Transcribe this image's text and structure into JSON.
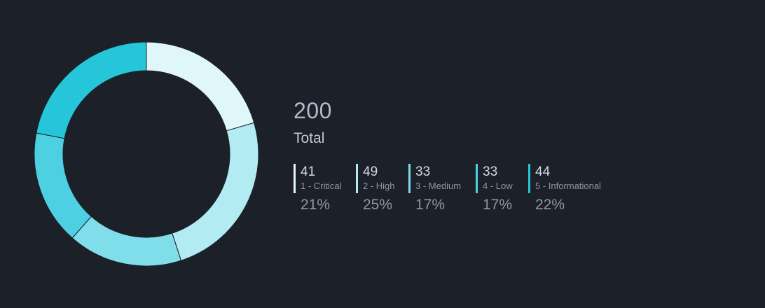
{
  "chart_data": {
    "type": "pie",
    "total": 200,
    "total_label": "Total",
    "slices": [
      {
        "name": "1 - Critical",
        "value": 41,
        "percent": "21%",
        "color": "#e0f7fa"
      },
      {
        "name": "2 - High",
        "value": 49,
        "percent": "25%",
        "color": "#b2ebf2"
      },
      {
        "name": "3 - Medium",
        "value": 33,
        "percent": "17%",
        "color": "#80deea"
      },
      {
        "name": "4 - Low",
        "value": 33,
        "percent": "17%",
        "color": "#4dd0e1"
      },
      {
        "name": "5 - Informational",
        "value": 44,
        "percent": "22%",
        "color": "#26c6da"
      }
    ]
  }
}
